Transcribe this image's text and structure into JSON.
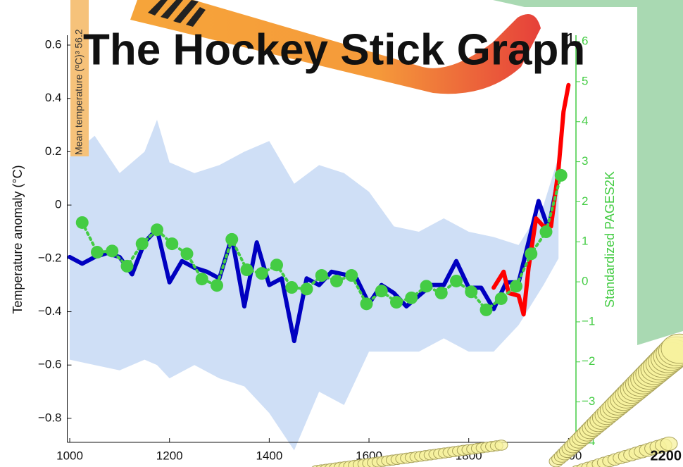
{
  "chart_data": {
    "type": "line",
    "title": "The Hockey Stick Graph",
    "title_superscript": "1",
    "ylabel": "Temperature anomaly (°C)",
    "y2label": "Standardized PAGES2K",
    "side_label": "Mean temperature (ºC)³  56.2",
    "corner_label": "2200",
    "xlim": [
      995,
      2015
    ],
    "ylim": [
      -0.89,
      0.637
    ],
    "y2lim": [
      -4.01,
      6.16
    ],
    "xticks": [
      1000,
      1200,
      1400,
      1600,
      1800,
      2000
    ],
    "yticks": [
      0.6,
      0.4,
      0.2,
      0,
      {
        "value": -0.2,
        "label": "−0.2"
      },
      {
        "value": -0.4,
        "label": "−0.4"
      },
      {
        "value": -0.6,
        "label": "−0.6"
      },
      {
        "value": -0.8,
        "label": "−0.8"
      }
    ],
    "y2ticks": [
      6,
      5,
      4,
      3,
      2,
      1,
      0,
      {
        "value": -1,
        "label": "−1"
      },
      {
        "value": -2,
        "label": "−2"
      },
      {
        "value": -3,
        "label": "−3"
      },
      {
        "value": -4,
        "label": "−4"
      }
    ],
    "band": {
      "color": "#cfdff6",
      "x": [
        1000,
        1050,
        1100,
        1150,
        1175,
        1200,
        1250,
        1300,
        1350,
        1400,
        1450,
        1500,
        1550,
        1600,
        1650,
        1700,
        1750,
        1800,
        1850,
        1900,
        1950,
        1980
      ],
      "upper": [
        0.18,
        0.26,
        0.12,
        0.2,
        0.32,
        0.16,
        0.12,
        0.15,
        0.2,
        0.24,
        0.08,
        0.15,
        0.12,
        0.05,
        -0.08,
        -0.1,
        -0.05,
        -0.1,
        -0.12,
        -0.15,
        0.0,
        0.18
      ],
      "lower": [
        -0.58,
        -0.6,
        -0.62,
        -0.58,
        -0.6,
        -0.65,
        -0.6,
        -0.65,
        -0.68,
        -0.78,
        -0.92,
        -0.7,
        -0.75,
        -0.55,
        -0.55,
        -0.55,
        -0.5,
        -0.55,
        -0.55,
        -0.45,
        -0.3,
        -0.2
      ]
    },
    "series": [
      {
        "color": "#0000c0",
        "axis": "y",
        "x": [
          1000,
          1025,
          1050,
          1075,
          1100,
          1125,
          1150,
          1175,
          1200,
          1225,
          1250,
          1275,
          1300,
          1325,
          1350,
          1375,
          1400,
          1425,
          1450,
          1475,
          1500,
          1525,
          1550,
          1575,
          1600,
          1625,
          1650,
          1675,
          1700,
          1725,
          1750,
          1775,
          1800,
          1825,
          1850,
          1875,
          1900,
          1925,
          1940,
          1960,
          1980
        ],
        "values": [
          -0.195,
          -0.22,
          -0.195,
          -0.18,
          -0.195,
          -0.26,
          -0.14,
          -0.09,
          -0.29,
          -0.21,
          -0.235,
          -0.25,
          -0.275,
          -0.12,
          -0.38,
          -0.14,
          -0.3,
          -0.275,
          -0.51,
          -0.275,
          -0.3,
          -0.25,
          -0.26,
          -0.275,
          -0.37,
          -0.3,
          -0.33,
          -0.38,
          -0.34,
          -0.3,
          -0.3,
          -0.21,
          -0.31,
          -0.31,
          -0.39,
          -0.29,
          -0.29,
          -0.1,
          0.015,
          -0.09,
          0.11
        ]
      },
      {
        "color": "#ff0000",
        "axis": "y",
        "x": [
          1850,
          1870,
          1880,
          1900,
          1910,
          1920,
          1935,
          1950,
          1965,
          1980,
          1990,
          2000
        ],
        "values": [
          -0.31,
          -0.25,
          -0.33,
          -0.34,
          -0.41,
          -0.235,
          -0.05,
          -0.08,
          -0.08,
          0.135,
          0.35,
          0.45
        ]
      },
      {
        "color": "#44cc44",
        "axis": "y2",
        "x": [
          1025,
          1055,
          1085,
          1115,
          1145,
          1175,
          1205,
          1235,
          1265,
          1295,
          1325,
          1355,
          1385,
          1415,
          1445,
          1475,
          1505,
          1535,
          1565,
          1595,
          1625,
          1655,
          1685,
          1715,
          1745,
          1775,
          1805,
          1835,
          1865,
          1895,
          1925,
          1955,
          1985
        ],
        "values": [
          1.48,
          0.74,
          0.77,
          0.39,
          0.95,
          1.3,
          0.95,
          0.7,
          0.07,
          -0.09,
          1.06,
          0.3,
          0.21,
          0.42,
          -0.14,
          -0.18,
          0.16,
          0.02,
          0.16,
          -0.55,
          -0.23,
          -0.51,
          -0.4,
          -0.11,
          -0.28,
          0.02,
          -0.25,
          -0.7,
          -0.42,
          -0.11,
          0.7,
          1.25,
          2.66
        ]
      }
    ]
  }
}
